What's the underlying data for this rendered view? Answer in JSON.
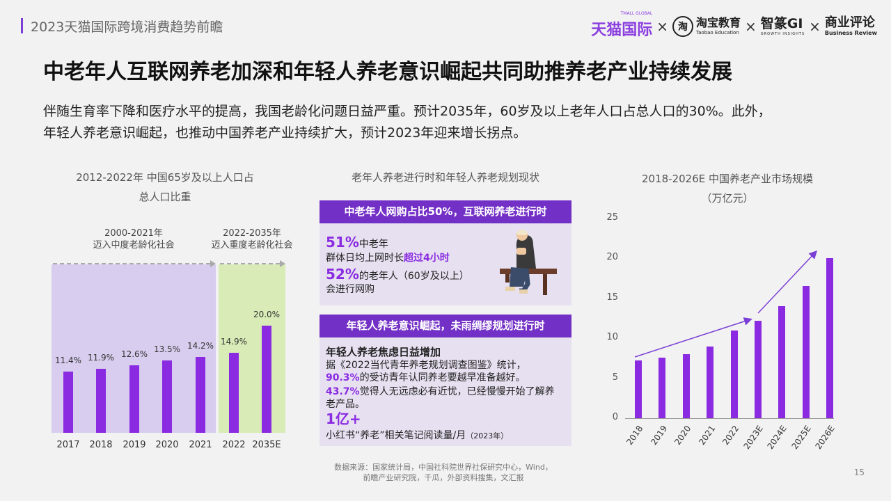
{
  "header": {
    "title": "2023天猫国际跨境消费趋势前瞻",
    "logos": {
      "tmall": "天猫国际",
      "tmall_small": "TMALL GLOBAL",
      "taobao": "淘宝教育",
      "taobao_en": "Taobao Education",
      "taobao_mark": "淘",
      "zhizhuan": "智篆GI",
      "zhizhuan_en": "GROWTH  INSIGHTS",
      "business_review": "商业评论",
      "business_review_en": "Business Review",
      "times": "×"
    }
  },
  "main_title": "中老年人互联网养老加深和年轻人养老意识崛起共同助推养老产业持续发展",
  "intro": {
    "line1": "伴随生育率下降和医疗水平的提高，我国老龄化问题日益严重。预计2035年，60岁及以上老年人口占总人口的30%。此外，",
    "line2": "年轻人养老意识崛起，也推动中国养老产业持续扩大，预计2023年迎来增长拐点。"
  },
  "left_panel": {
    "title_line1": "2012-2022年 中国65岁及以上人口占",
    "title_line2": "总人口比重",
    "phase1_line1": "2000-2021年",
    "phase1_line2": "迈入中度老龄化社会",
    "phase2_line1": "2022-2035年",
    "phase2_line2": "迈入重度老龄化社会",
    "colors": {
      "phase1": "#d8cdee",
      "phase2": "#d9ecb7",
      "bar": "#8a2be2"
    }
  },
  "middle_panel": {
    "title": "老年人养老进行时和年轻人养老规划现状",
    "banner1": "中老年人网购占比50%，互联网养老进行时",
    "stat1_value": "51%",
    "stat1_suffix": "中老年",
    "stat1_line2a": "群体日均上网时长",
    "stat1_line2b": "超过4小时",
    "stat2_value": "52%",
    "stat2_suffix": "的老年人（60岁及以上）",
    "stat2_line2": "会进行网购",
    "banner2": "年轻人养老意识崛起，未雨绸缪规划进行时",
    "box2_heading": "年轻人养老焦虑日益增加",
    "box2_line1": "据《2022当代青年养老规划调查图鉴》统计，",
    "box2_line2_value": "90.3%",
    "box2_line2_text": "的受访青年认同养老要越早准备越好。",
    "box2_line3_value": "43.7%",
    "box2_line3_text": "觉得人无远虑必有近忧，已经慢慢开始了解养",
    "box2_line4": "老产品。",
    "box2_big": "1亿+",
    "box2_line5": "小红书“养老”相关笔记阅读量/月",
    "box2_line5_small": "（2023年）",
    "source_line1": "数据来源：国家统计局，中国社科院世界社保研究中心，Wind，",
    "source_line2": "前瞻产业研究院，千瓜，外部资料搜集，文汇报"
  },
  "right_panel": {
    "title_line1": "2018-2026E 中国养老产业市场规模",
    "title_line2": "（万亿元）"
  },
  "page_number": "15",
  "chart_data": [
    {
      "type": "bar",
      "title": "2012-2022年 中国65岁及以上人口占总人口比重",
      "categories": [
        "2017",
        "2018",
        "2019",
        "2020",
        "2021",
        "2022",
        "2035E"
      ],
      "values": [
        11.4,
        11.9,
        12.6,
        13.5,
        14.2,
        14.9,
        20.0
      ],
      "labels": [
        "11.4%",
        "11.9%",
        "12.6%",
        "13.5%",
        "14.2%",
        "14.9%",
        "20.0%"
      ],
      "unit": "%",
      "ylim": [
        0,
        24
      ]
    },
    {
      "type": "bar",
      "title": "2018-2026E 中国养老产业市场规模",
      "ylabel": "（万亿元）",
      "categories": [
        "2018",
        "2019",
        "2020",
        "2021",
        "2022",
        "2023E",
        "2024E",
        "2025E",
        "2026E"
      ],
      "values": [
        7.2,
        7.6,
        8.0,
        9.0,
        11.0,
        12.2,
        14.0,
        16.5,
        20.0
      ],
      "yticks": [
        0,
        5,
        10,
        15,
        20,
        25
      ],
      "ylim": [
        0,
        25
      ]
    }
  ]
}
